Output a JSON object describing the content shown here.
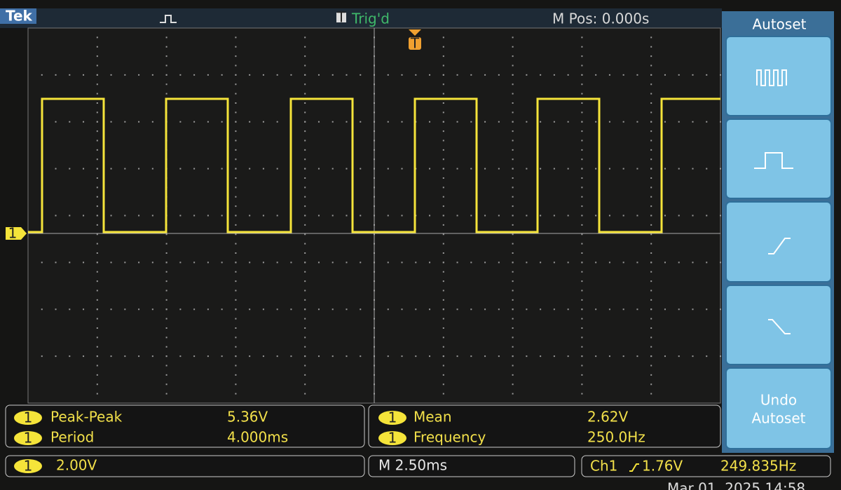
{
  "header": {
    "brand": "Tek",
    "trigger_badge": "T",
    "trigger_status": "Trig'd",
    "position": "M Pos: 0.000s"
  },
  "markers": {
    "trigger": "T",
    "channel": "1"
  },
  "menu": {
    "title": "Autoset",
    "undo": [
      "Undo",
      "Autoset"
    ]
  },
  "measurements": [
    {
      "channel": "1",
      "name": "Peak-Peak",
      "value": "5.36V"
    },
    {
      "channel": "1",
      "name": "Period",
      "value": "4.000ms"
    },
    {
      "channel": "1",
      "name": "Mean",
      "value": "2.62V"
    },
    {
      "channel": "1",
      "name": "Frequency",
      "value": "250.0Hz"
    }
  ],
  "status": {
    "channel": "1",
    "scale": "2.00V",
    "timebase": "M 2.50ms",
    "trigger_source": "Ch1",
    "trigger_level": "1.76V",
    "frequency": "249.835Hz"
  },
  "datetime": "Mar 01, 2025 14:58"
}
